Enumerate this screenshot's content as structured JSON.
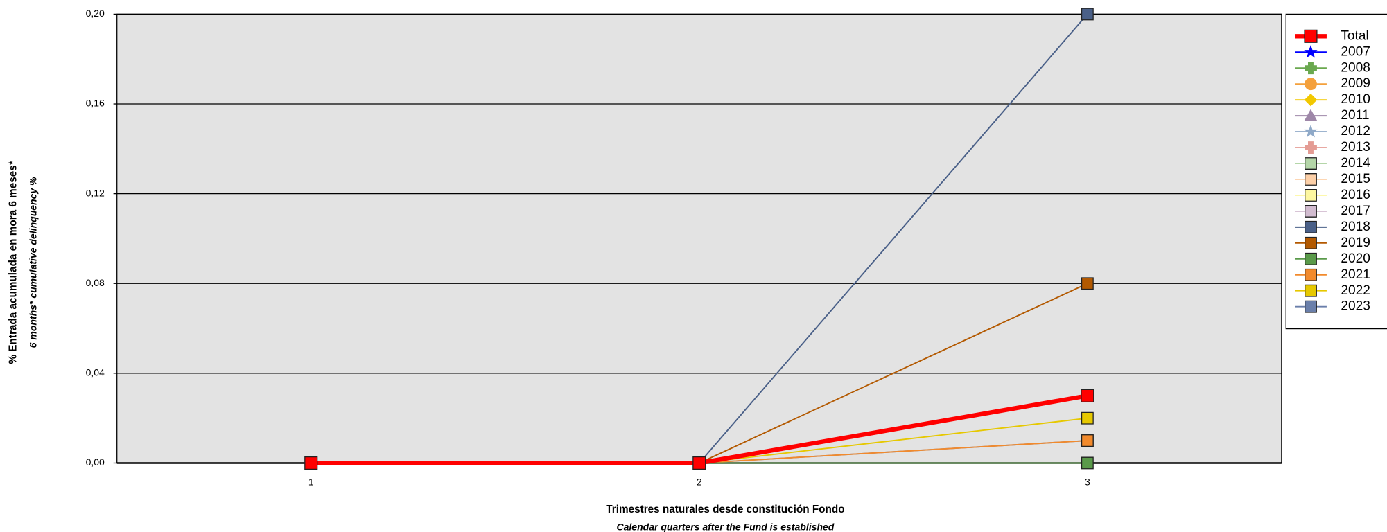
{
  "chart_data": {
    "type": "line",
    "ylabel": "% Entrada acumulada en mora 6 meses*",
    "ylabel_en": "6 months* cumulative delinquency %",
    "xlabel": "Trimestres naturales desde constitución Fondo",
    "xlabel_en": "Calendar quarters after the Fund is established",
    "categories": [
      "1",
      "2",
      "3"
    ],
    "ylim": [
      0,
      0.2
    ],
    "yticks": [
      {
        "value": 0,
        "label": "0,00"
      },
      {
        "value": 0.04,
        "label": "0,04"
      },
      {
        "value": 0.08,
        "label": "0,08"
      },
      {
        "value": 0.12,
        "label": "0,12"
      },
      {
        "value": 0.16,
        "label": "0,16"
      },
      {
        "value": 0.2,
        "label": "0,20"
      }
    ],
    "grid": true,
    "legend": "right",
    "series": [
      {
        "name": "Total",
        "color": "#ff0000",
        "marker": "square",
        "line_width": 5,
        "values": [
          0,
          0,
          0.03
        ]
      },
      {
        "name": "2007",
        "color": "#0000ff",
        "marker": "star",
        "line_width": 1.5,
        "values": [
          null,
          null,
          null
        ]
      },
      {
        "name": "2008",
        "color": "#6aa84f",
        "marker": "plus",
        "line_width": 1.5,
        "values": [
          null,
          null,
          null
        ]
      },
      {
        "name": "2009",
        "color": "#f4a03c",
        "marker": "circle",
        "line_width": 1.5,
        "values": [
          null,
          null,
          null
        ]
      },
      {
        "name": "2010",
        "color": "#f2c800",
        "marker": "diamond",
        "line_width": 1.5,
        "values": [
          null,
          null,
          null
        ]
      },
      {
        "name": "2011",
        "color": "#9e87a8",
        "marker": "triangle",
        "line_width": 1.5,
        "values": [
          null,
          null,
          null
        ]
      },
      {
        "name": "2012",
        "color": "#8fa9c8",
        "marker": "star",
        "line_width": 1.5,
        "values": [
          null,
          null,
          null
        ]
      },
      {
        "name": "2013",
        "color": "#e49c94",
        "marker": "plus",
        "line_width": 1.5,
        "values": [
          null,
          null,
          null
        ]
      },
      {
        "name": "2014",
        "color": "#b4d6a8",
        "marker": "square",
        "line_width": 1.5,
        "values": [
          null,
          null,
          null
        ]
      },
      {
        "name": "2015",
        "color": "#fdd0a8",
        "marker": "square",
        "line_width": 1.5,
        "values": [
          null,
          null,
          null
        ]
      },
      {
        "name": "2016",
        "color": "#fdf7a0",
        "marker": "square",
        "line_width": 1.5,
        "values": [
          null,
          null,
          null
        ]
      },
      {
        "name": "2017",
        "color": "#d2bcd0",
        "marker": "square",
        "line_width": 1.5,
        "values": [
          null,
          null,
          null
        ]
      },
      {
        "name": "2018",
        "color": "#4a6088",
        "marker": "square",
        "line_width": 1.5,
        "values": [
          0,
          0,
          0.2
        ]
      },
      {
        "name": "2019",
        "color": "#b35900",
        "marker": "square",
        "line_width": 1.5,
        "values": [
          0,
          0,
          0.08
        ]
      },
      {
        "name": "2020",
        "color": "#5a9a4a",
        "marker": "square",
        "line_width": 1.5,
        "values": [
          0,
          0,
          0
        ]
      },
      {
        "name": "2021",
        "color": "#f28a2c",
        "marker": "square",
        "line_width": 1.5,
        "values": [
          0,
          0,
          0.01
        ]
      },
      {
        "name": "2022",
        "color": "#e6c800",
        "marker": "square",
        "line_width": 1.5,
        "values": [
          0,
          0,
          0.02
        ]
      },
      {
        "name": "2023",
        "color": "#6a7faa",
        "marker": "square",
        "line_width": 1.5,
        "values": [
          0,
          0,
          0.01
        ]
      }
    ]
  }
}
